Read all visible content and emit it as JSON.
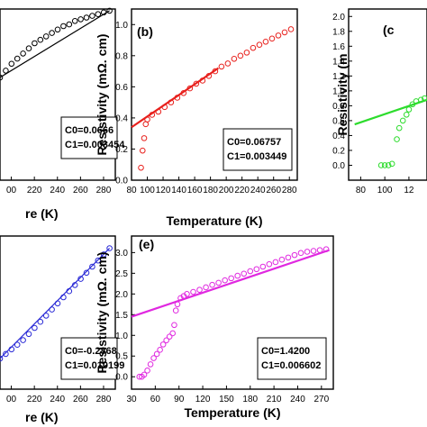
{
  "chart_data": [
    {
      "panel": "a",
      "label": "",
      "type": "scatter",
      "xlabel": "re (K)",
      "ylabel": "",
      "xticks": [
        "00",
        "220",
        "240",
        "260",
        "280"
      ],
      "yticks": [],
      "coefficients": [
        "C0=0.0666",
        "C1=0.003454"
      ],
      "color": "#000000",
      "points": [
        [
          0.0,
          0.6
        ],
        [
          0.05,
          0.64
        ],
        [
          0.1,
          0.68
        ],
        [
          0.15,
          0.71
        ],
        [
          0.2,
          0.74
        ],
        [
          0.25,
          0.77
        ],
        [
          0.3,
          0.8
        ],
        [
          0.35,
          0.82
        ],
        [
          0.4,
          0.84
        ],
        [
          0.45,
          0.86
        ],
        [
          0.5,
          0.88
        ],
        [
          0.55,
          0.9
        ],
        [
          0.6,
          0.91
        ],
        [
          0.65,
          0.93
        ],
        [
          0.7,
          0.94
        ],
        [
          0.75,
          0.95
        ],
        [
          0.8,
          0.96
        ],
        [
          0.85,
          0.97
        ],
        [
          0.9,
          0.98
        ],
        [
          0.95,
          0.99
        ]
      ],
      "fit": null
    },
    {
      "panel": "b",
      "label": "(b)",
      "type": "scatter",
      "xlabel": "Temperature (K)",
      "ylabel": "Resistivity (mΩ. cm)",
      "xlim": [
        80,
        290
      ],
      "ylim": [
        0.0,
        1.1
      ],
      "xticks": [
        "80",
        "100",
        "120",
        "140",
        "160",
        "180",
        "200",
        "220",
        "240",
        "260",
        "280"
      ],
      "yticks": [
        "0.0",
        "0.2",
        "0.4",
        "0.6",
        "0.8",
        "1.0"
      ],
      "coefficients": [
        "C0=0.06757",
        "C1=0.003449"
      ],
      "color": "#e8211d",
      "points": [
        [
          92,
          0.08
        ],
        [
          94,
          0.19
        ],
        [
          96,
          0.27
        ],
        [
          98,
          0.36
        ],
        [
          100,
          0.39
        ],
        [
          106,
          0.42
        ],
        [
          114,
          0.44
        ],
        [
          122,
          0.47
        ],
        [
          130,
          0.5
        ],
        [
          138,
          0.53
        ],
        [
          146,
          0.56
        ],
        [
          154,
          0.59
        ],
        [
          162,
          0.62
        ],
        [
          170,
          0.64
        ],
        [
          178,
          0.67
        ],
        [
          186,
          0.7
        ],
        [
          194,
          0.73
        ],
        [
          202,
          0.75
        ],
        [
          210,
          0.78
        ],
        [
          218,
          0.8
        ],
        [
          226,
          0.82
        ],
        [
          234,
          0.85
        ],
        [
          242,
          0.87
        ],
        [
          250,
          0.89
        ],
        [
          258,
          0.91
        ],
        [
          266,
          0.93
        ],
        [
          274,
          0.95
        ],
        [
          282,
          0.97
        ]
      ],
      "fit": {
        "x": [
          80,
          190
        ],
        "y": [
          0.34,
          0.72
        ]
      }
    },
    {
      "panel": "c",
      "label": "(c",
      "type": "scatter",
      "xlabel": "",
      "ylabel": "Resistivity (m",
      "xlim": [
        70,
        135
      ],
      "ylim": [
        -0.2,
        2.1
      ],
      "xticks": [
        "80",
        "100",
        "12"
      ],
      "yticks": [
        "0.0",
        "0.2",
        "0.4",
        "0.6",
        "0.8",
        "1.0",
        "1.2",
        "1.4",
        "1.6",
        "1.8",
        "2.0"
      ],
      "coefficients": [],
      "color": "#2ddc2d",
      "points": [
        [
          97,
          0.0
        ],
        [
          100,
          0.0
        ],
        [
          103,
          0.0
        ],
        [
          106,
          0.02
        ],
        [
          110,
          0.35
        ],
        [
          112,
          0.5
        ],
        [
          115,
          0.6
        ],
        [
          118,
          0.68
        ],
        [
          120,
          0.75
        ],
        [
          123,
          0.82
        ],
        [
          126,
          0.86
        ],
        [
          130,
          0.88
        ],
        [
          133,
          0.9
        ]
      ],
      "fit": {
        "x": [
          75,
          135
        ],
        "y": [
          0.55,
          0.88
        ]
      }
    },
    {
      "panel": "d",
      "label": "",
      "type": "scatter",
      "xlabel": "re (K)",
      "ylabel": "",
      "xticks": [
        "00",
        "220",
        "240",
        "260",
        "280"
      ],
      "yticks": [],
      "coefficients": [
        "C0=-0.2868",
        "C1=0.010199"
      ],
      "color": "#2a2ad6",
      "points": [
        [
          0.0,
          0.2
        ],
        [
          0.05,
          0.23
        ],
        [
          0.1,
          0.26
        ],
        [
          0.15,
          0.29
        ],
        [
          0.2,
          0.32
        ],
        [
          0.25,
          0.36
        ],
        [
          0.3,
          0.4
        ],
        [
          0.35,
          0.44
        ],
        [
          0.4,
          0.48
        ],
        [
          0.45,
          0.52
        ],
        [
          0.5,
          0.56
        ],
        [
          0.55,
          0.6
        ],
        [
          0.6,
          0.64
        ],
        [
          0.65,
          0.68
        ],
        [
          0.7,
          0.72
        ],
        [
          0.75,
          0.76
        ],
        [
          0.8,
          0.8
        ],
        [
          0.85,
          0.84
        ],
        [
          0.9,
          0.88
        ],
        [
          0.95,
          0.92
        ]
      ],
      "fit": null
    },
    {
      "panel": "e",
      "label": "(e)",
      "type": "scatter",
      "xlabel": "Temperature (K)",
      "ylabel": "Resistivity (mΩ. cm)",
      "xlim": [
        30,
        285
      ],
      "ylim": [
        -0.3,
        3.4
      ],
      "xticks": [
        "30",
        "60",
        "90",
        "120",
        "150",
        "180",
        "210",
        "240",
        "270"
      ],
      "yticks": [
        "0.0",
        "0.5",
        "1.0",
        "1.5",
        "2.0",
        "2.5",
        "3.0"
      ],
      "coefficients": [
        "C0=1.4200",
        "C1=0.006602"
      ],
      "color": "#e028e0",
      "points": [
        [
          40,
          0.0
        ],
        [
          43,
          0.0
        ],
        [
          46,
          0.05
        ],
        [
          50,
          0.15
        ],
        [
          54,
          0.3
        ],
        [
          58,
          0.45
        ],
        [
          62,
          0.55
        ],
        [
          66,
          0.65
        ],
        [
          70,
          0.78
        ],
        [
          74,
          0.88
        ],
        [
          78,
          0.97
        ],
        [
          82,
          1.05
        ],
        [
          84,
          1.25
        ],
        [
          86,
          1.6
        ],
        [
          88,
          1.75
        ],
        [
          92,
          1.9
        ],
        [
          96,
          1.95
        ],
        [
          100,
          2.0
        ],
        [
          108,
          2.05
        ],
        [
          116,
          2.1
        ],
        [
          124,
          2.16
        ],
        [
          132,
          2.22
        ],
        [
          140,
          2.27
        ],
        [
          148,
          2.33
        ],
        [
          156,
          2.38
        ],
        [
          164,
          2.44
        ],
        [
          172,
          2.49
        ],
        [
          180,
          2.55
        ],
        [
          188,
          2.6
        ],
        [
          196,
          2.66
        ],
        [
          204,
          2.72
        ],
        [
          212,
          2.77
        ],
        [
          220,
          2.83
        ],
        [
          228,
          2.88
        ],
        [
          236,
          2.94
        ],
        [
          244,
          2.99
        ],
        [
          252,
          3.02
        ],
        [
          260,
          3.04
        ],
        [
          268,
          3.06
        ],
        [
          276,
          3.08
        ]
      ],
      "fit": {
        "x": [
          30,
          280
        ],
        "y": [
          1.45,
          3.06
        ]
      }
    }
  ]
}
